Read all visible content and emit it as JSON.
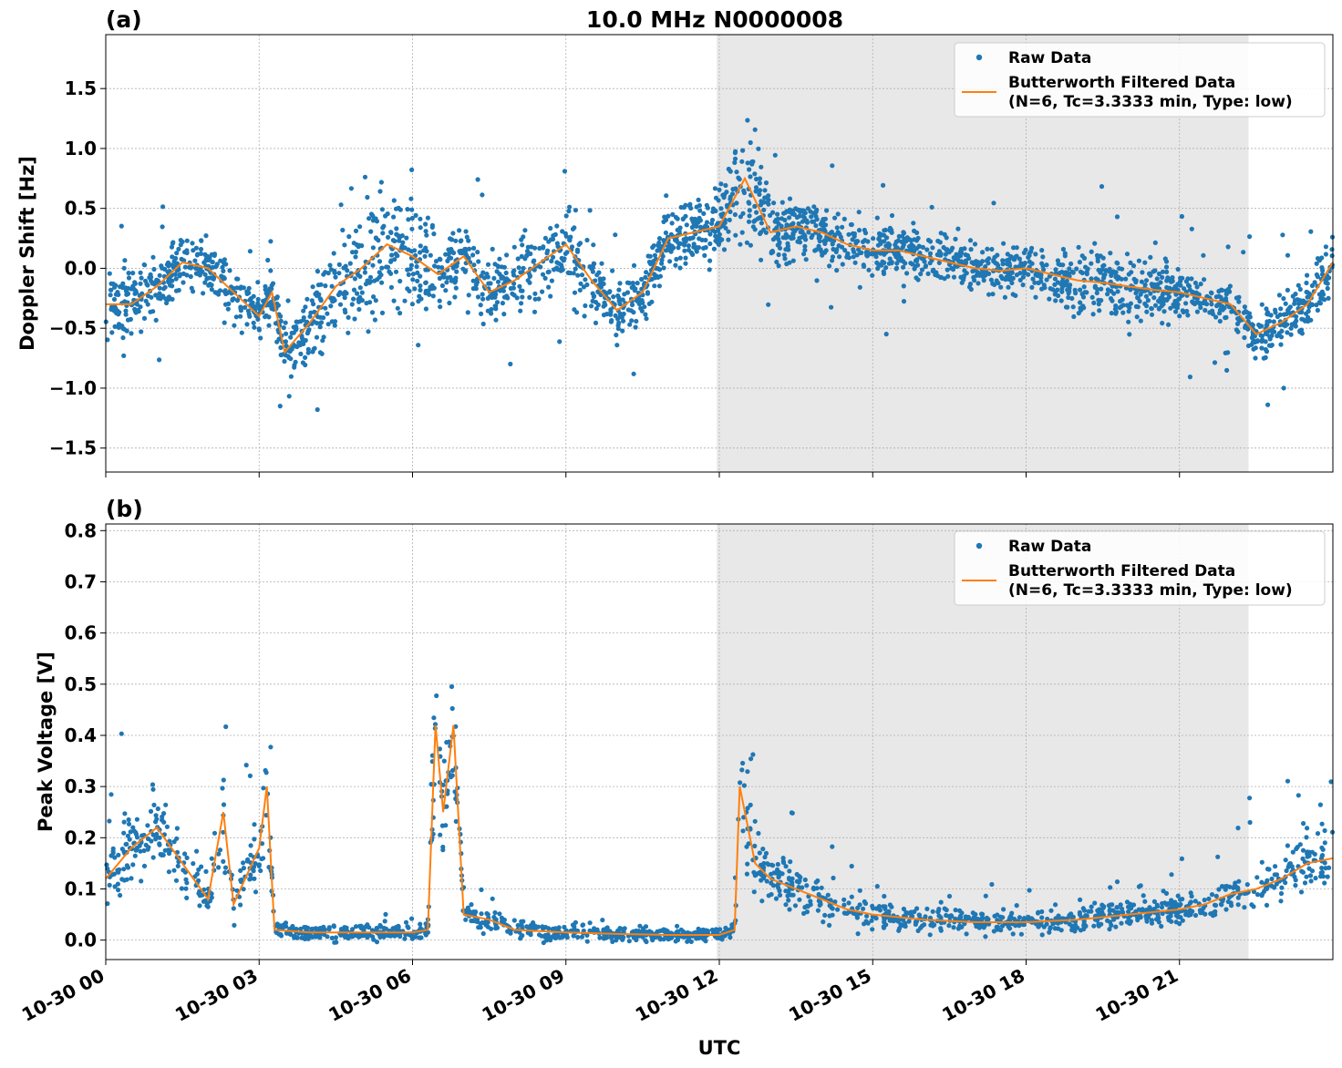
{
  "figure": {
    "title": "10.0 MHz N0000008",
    "xlabel": "UTC",
    "colors": {
      "raw": "#1f77b4",
      "filtered": "#ff7f0e",
      "shade": "#e8e8e8",
      "grid": "#b0b0b0"
    }
  },
  "chart_data": [
    {
      "type": "scatter",
      "panel_label": "(a)",
      "title": "10.0 MHz N0000008",
      "xlabel": "",
      "ylabel": "Doppler Shift [Hz]",
      "x_unit": "hours UTC on 10-30",
      "xlim": [
        0,
        24
      ],
      "ylim": [
        -1.7,
        1.95
      ],
      "yticks": [
        -1.5,
        -1.0,
        -0.5,
        0.0,
        0.5,
        1.0,
        1.5
      ],
      "ytick_labels": [
        "−1.5",
        "−1.0",
        "−0.5",
        "0.0",
        "0.5",
        "1.0",
        "1.5"
      ],
      "grid": true,
      "legend_position": "top-right",
      "shaded_region": [
        11.95,
        22.35
      ],
      "series": [
        {
          "name": "Raw Data",
          "kind": "scatter",
          "color": "#1f77b4",
          "spread": [
            0.3,
            0.28,
            0.26,
            0.22,
            0.2,
            0.22,
            0.25,
            0.28,
            0.35,
            0.45,
            0.55,
            0.5,
            0.38,
            0.3,
            0.28,
            0.26,
            0.3,
            0.33,
            0.3,
            0.25,
            0.26,
            0.28,
            0.28,
            0.3,
            0.38,
            0.45,
            0.3,
            0.22,
            0.2,
            0.2,
            0.22,
            0.22,
            0.22,
            0.22,
            0.2,
            0.2,
            0.22,
            0.25,
            0.28,
            0.3,
            0.28,
            0.22,
            0.2,
            0.18,
            0.2,
            0.22,
            0.22,
            0.28,
            0.32
          ]
        },
        {
          "name": "Butterworth Filtered Data",
          "name_line2": "(N=6, Tc=3.3333 min, Type: low)",
          "kind": "line",
          "color": "#ff7f0e",
          "x": [
            0,
            0.5,
            1,
            1.5,
            2,
            2.5,
            3,
            3.25,
            3.5,
            4,
            4.5,
            5,
            5.5,
            6,
            6.5,
            7,
            7.5,
            8,
            8.5,
            9,
            9.5,
            10,
            10.5,
            11,
            11.5,
            12,
            12.5,
            13,
            13.5,
            14,
            14.5,
            15,
            15.5,
            16,
            16.5,
            17,
            17.5,
            18,
            18.5,
            19,
            19.5,
            20,
            20.5,
            21,
            21.5,
            22,
            22.5,
            23,
            23.5,
            24
          ],
          "values": [
            -0.3,
            -0.3,
            -0.15,
            0.05,
            0.0,
            -0.2,
            -0.4,
            -0.2,
            -0.7,
            -0.45,
            -0.15,
            0.0,
            0.2,
            0.1,
            -0.05,
            0.1,
            -0.2,
            -0.1,
            0.05,
            0.2,
            -0.1,
            -0.35,
            -0.2,
            0.25,
            0.3,
            0.35,
            0.75,
            0.3,
            0.35,
            0.3,
            0.2,
            0.15,
            0.15,
            0.1,
            0.05,
            0.0,
            -0.02,
            0.0,
            -0.05,
            -0.1,
            -0.12,
            -0.15,
            -0.18,
            -0.2,
            -0.25,
            -0.3,
            -0.55,
            -0.45,
            -0.3,
            0.05
          ]
        }
      ]
    },
    {
      "type": "scatter",
      "panel_label": "(b)",
      "title": "",
      "xlabel": "UTC",
      "ylabel": "Peak Voltage [V]",
      "x_unit": "hours UTC on 10-30",
      "xlim": [
        0,
        24
      ],
      "ylim": [
        -0.038,
        0.813
      ],
      "yticks": [
        0.0,
        0.1,
        0.2,
        0.3,
        0.4,
        0.5,
        0.6,
        0.7,
        0.8
      ],
      "ytick_labels": [
        "0.0",
        "0.1",
        "0.2",
        "0.3",
        "0.4",
        "0.5",
        "0.6",
        "0.7",
        "0.8"
      ],
      "xticks": [
        0,
        3,
        6,
        9,
        12,
        15,
        18,
        21
      ],
      "xtick_labels": [
        "10-30 00",
        "10-30 03",
        "10-30 06",
        "10-30 09",
        "10-30 12",
        "10-30 15",
        "10-30 18",
        "10-30 21"
      ],
      "grid": true,
      "legend_position": "top-right",
      "shaded_region": [
        11.95,
        22.35
      ],
      "series": [
        {
          "name": "Raw Data",
          "kind": "scatter",
          "color": "#1f77b4"
        },
        {
          "name": "Butterworth Filtered Data",
          "name_line2": "(N=6, Tc=3.3333 min, Type: low)",
          "kind": "line",
          "color": "#ff7f0e",
          "x": [
            0,
            0.5,
            1,
            1.5,
            2,
            2.3,
            2.5,
            3,
            3.15,
            3.3,
            4,
            5,
            6,
            6.3,
            6.45,
            6.6,
            6.8,
            7,
            7.5,
            8,
            9,
            10,
            11,
            12,
            12.3,
            12.4,
            12.7,
            13,
            13.5,
            14,
            14.5,
            15,
            16,
            17,
            18,
            19,
            20,
            21,
            21.5,
            22,
            22.5,
            23,
            23.5,
            24
          ],
          "values": [
            0.12,
            0.18,
            0.22,
            0.15,
            0.08,
            0.25,
            0.07,
            0.18,
            0.3,
            0.02,
            0.015,
            0.015,
            0.015,
            0.02,
            0.42,
            0.25,
            0.42,
            0.05,
            0.04,
            0.02,
            0.015,
            0.012,
            0.01,
            0.01,
            0.02,
            0.3,
            0.15,
            0.12,
            0.1,
            0.08,
            0.06,
            0.05,
            0.04,
            0.035,
            0.035,
            0.04,
            0.05,
            0.06,
            0.07,
            0.09,
            0.1,
            0.12,
            0.15,
            0.16
          ]
        }
      ]
    }
  ]
}
